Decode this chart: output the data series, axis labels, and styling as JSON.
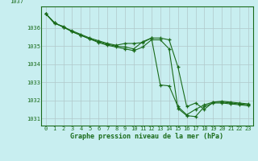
{
  "title": "Graphe pression niveau de la mer (hPa)",
  "bg_color": "#c8eef0",
  "grid_color": "#b0c8ca",
  "line_color": "#1a6b1a",
  "xlim": [
    -0.5,
    23.5
  ],
  "ylim": [
    1030.6,
    1037.2
  ],
  "yticks": [
    1031,
    1032,
    1033,
    1034,
    1035,
    1036
  ],
  "ytick_top": 1037,
  "xticks": [
    0,
    1,
    2,
    3,
    4,
    5,
    6,
    7,
    8,
    9,
    10,
    11,
    12,
    13,
    14,
    15,
    16,
    17,
    18,
    19,
    20,
    21,
    22,
    23
  ],
  "series": [
    [
      1036.8,
      1036.3,
      1036.05,
      1035.85,
      1035.65,
      1035.45,
      1035.3,
      1035.15,
      1035.05,
      1035.15,
      1035.15,
      1035.2,
      1035.45,
      1032.85,
      1032.8,
      1031.65,
      1031.2,
      1031.5,
      1031.75,
      1031.9,
      1031.9,
      1031.85,
      1031.8,
      1031.75
    ],
    [
      1036.8,
      1036.25,
      1036.1,
      1035.8,
      1035.6,
      1035.4,
      1035.25,
      1035.1,
      1035.0,
      1034.95,
      1034.85,
      1035.25,
      1035.45,
      1035.45,
      1035.35,
      1033.85,
      1031.65,
      1031.85,
      1031.5,
      1031.9,
      1031.95,
      1031.9,
      1031.85,
      1031.8
    ],
    [
      1036.8,
      1036.3,
      1036.05,
      1035.8,
      1035.6,
      1035.4,
      1035.2,
      1035.05,
      1034.95,
      1034.85,
      1034.75,
      1034.95,
      1035.35,
      1035.35,
      1034.85,
      1031.55,
      1031.15,
      1031.1,
      1031.65,
      1031.85,
      1031.85,
      1031.8,
      1031.75,
      1031.7
    ]
  ]
}
